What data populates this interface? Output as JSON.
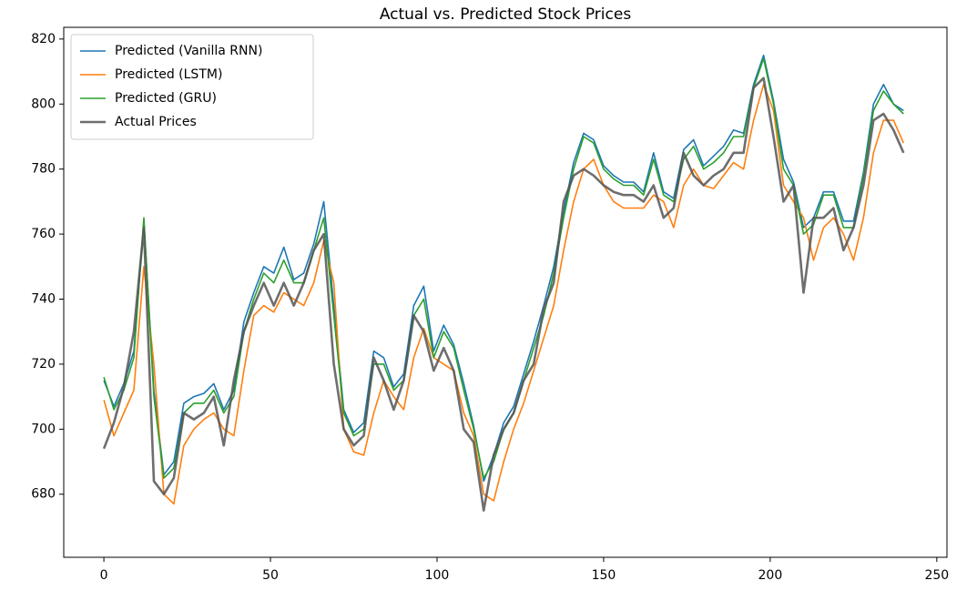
{
  "chart_data": {
    "type": "line",
    "title": "Actual vs. Predicted Stock Prices",
    "x": [
      0,
      3,
      6,
      9,
      12,
      15,
      18,
      21,
      24,
      27,
      30,
      33,
      36,
      39,
      42,
      45,
      48,
      51,
      54,
      57,
      60,
      63,
      66,
      69,
      72,
      75,
      78,
      81,
      84,
      87,
      90,
      93,
      96,
      99,
      102,
      105,
      108,
      111,
      114,
      117,
      120,
      123,
      126,
      129,
      132,
      135,
      138,
      141,
      144,
      147,
      150,
      153,
      156,
      159,
      162,
      165,
      168,
      171,
      174,
      177,
      180,
      183,
      186,
      189,
      192,
      195,
      198,
      201,
      204,
      207,
      210,
      213,
      216,
      219,
      222,
      225,
      228,
      231,
      234,
      237,
      240
    ],
    "series": [
      {
        "name": "Predicted (Vanilla RNN)",
        "color": "#1f77b4",
        "values": [
          715,
          707,
          714,
          724,
          764,
          712,
          686,
          690,
          708,
          710,
          711,
          714,
          706,
          712,
          733,
          742,
          750,
          748,
          756,
          746,
          748,
          757,
          770,
          738,
          706,
          699,
          702,
          724,
          722,
          713,
          717,
          738,
          744,
          724,
          732,
          726,
          714,
          701,
          684,
          692,
          702,
          707,
          717,
          727,
          738,
          750,
          767,
          782,
          791,
          789,
          781,
          778,
          776,
          776,
          773,
          785,
          773,
          771,
          786,
          789,
          781,
          784,
          787,
          792,
          791,
          806,
          815,
          801,
          783,
          776,
          762,
          765,
          773,
          773,
          764,
          764,
          779,
          800,
          806,
          800,
          798
        ]
      },
      {
        "name": "Predicted (LSTM)",
        "color": "#ff7f0e",
        "values": [
          709,
          698,
          705,
          712,
          750,
          720,
          680,
          677,
          695,
          700,
          703,
          705,
          700,
          698,
          718,
          735,
          738,
          736,
          742,
          740,
          738,
          745,
          758,
          745,
          700,
          693,
          692,
          705,
          715,
          710,
          706,
          722,
          731,
          722,
          720,
          718,
          705,
          698,
          680,
          678,
          690,
          700,
          708,
          718,
          728,
          738,
          755,
          770,
          780,
          783,
          775,
          770,
          768,
          768,
          768,
          772,
          770,
          762,
          775,
          780,
          775,
          774,
          778,
          782,
          780,
          795,
          806,
          798,
          775,
          770,
          765,
          752,
          762,
          765,
          760,
          752,
          765,
          785,
          795,
          795,
          788
        ]
      },
      {
        "name": "Predicted (GRU)",
        "color": "#2ca02c",
        "values": [
          716,
          706,
          712,
          722,
          765,
          710,
          685,
          688,
          705,
          708,
          708,
          712,
          705,
          710,
          730,
          740,
          748,
          745,
          752,
          745,
          745,
          755,
          765,
          735,
          705,
          698,
          700,
          720,
          720,
          712,
          715,
          735,
          740,
          722,
          730,
          725,
          712,
          700,
          685,
          690,
          700,
          705,
          715,
          725,
          735,
          748,
          765,
          780,
          790,
          788,
          780,
          777,
          775,
          775,
          772,
          783,
          772,
          770,
          783,
          787,
          780,
          782,
          785,
          790,
          790,
          805,
          814,
          800,
          780,
          775,
          760,
          763,
          772,
          772,
          762,
          762,
          778,
          798,
          804,
          800,
          797
        ]
      },
      {
        "name": "Actual Prices",
        "color": "#555555",
        "values": [
          694,
          702,
          713,
          730,
          762,
          684,
          680,
          685,
          705,
          703,
          705,
          710,
          695,
          715,
          730,
          738,
          745,
          738,
          745,
          738,
          745,
          755,
          760,
          720,
          700,
          695,
          698,
          722,
          715,
          706,
          715,
          735,
          730,
          718,
          725,
          718,
          700,
          696,
          675,
          692,
          700,
          705,
          715,
          720,
          737,
          745,
          770,
          778,
          780,
          778,
          775,
          773,
          772,
          772,
          770,
          775,
          765,
          768,
          785,
          778,
          775,
          778,
          780,
          785,
          785,
          805,
          808,
          790,
          770,
          775,
          742,
          765,
          765,
          768,
          755,
          762,
          775,
          795,
          797,
          792,
          785
        ]
      }
    ],
    "xlim": [
      -12.05,
      253.05
    ],
    "ylim": [
      660.6,
      823.6
    ],
    "xticks": [
      0,
      50,
      100,
      150,
      200,
      250
    ],
    "yticks": [
      680,
      700,
      720,
      740,
      760,
      780,
      800,
      820
    ],
    "legend": "upper left",
    "grid": false
  }
}
